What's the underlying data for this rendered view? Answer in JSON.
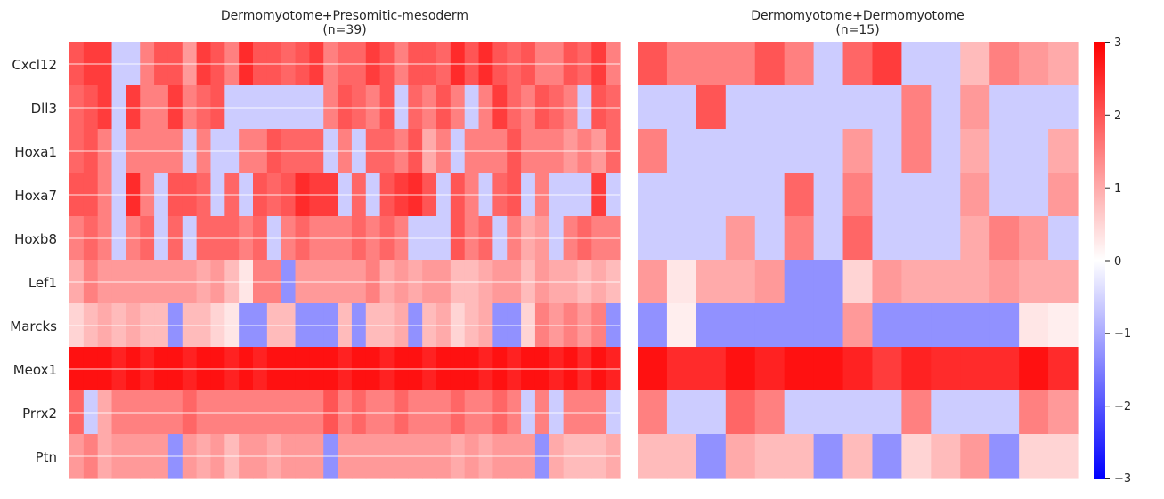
{
  "chart_data": {
    "type": "heatmap",
    "rows": [
      "Cxcl12",
      "Dll3",
      "Hoxa1",
      "Hoxa7",
      "Hoxb8",
      "Lef1",
      "Marcks",
      "Meox1",
      "Prrx2",
      "Ptn"
    ],
    "panels": [
      {
        "title": "Dermomyotome+Presomitic-mesoderm",
        "subtitle": "(n=39)",
        "n_cols": 39,
        "values": [
          [
            2.0,
            2.3,
            2.3,
            -0.6,
            -0.6,
            1.5,
            2.0,
            2.0,
            1.2,
            2.3,
            2.0,
            1.5,
            2.5,
            2.0,
            2.0,
            1.8,
            2.0,
            2.3,
            1.5,
            1.8,
            1.8,
            2.3,
            2.0,
            1.5,
            2.0,
            2.0,
            1.8,
            2.5,
            2.0,
            2.5,
            2.0,
            1.8,
            2.0,
            1.5,
            1.5,
            2.0,
            1.8,
            2.3,
            1.5
          ],
          [
            1.8,
            2.0,
            2.3,
            -0.6,
            2.3,
            1.5,
            1.5,
            2.3,
            1.5,
            1.8,
            2.0,
            -0.6,
            -0.6,
            -0.6,
            -0.6,
            -0.6,
            -0.6,
            -0.6,
            1.5,
            2.0,
            1.8,
            1.5,
            2.0,
            -0.6,
            1.8,
            1.5,
            2.0,
            1.5,
            -0.6,
            1.5,
            2.3,
            1.8,
            1.5,
            2.0,
            1.8,
            1.5,
            -0.6,
            2.0,
            1.8
          ],
          [
            1.8,
            2.0,
            1.5,
            -0.6,
            1.5,
            1.5,
            1.5,
            1.5,
            -0.6,
            1.5,
            -0.6,
            -0.6,
            1.5,
            1.5,
            2.0,
            1.8,
            1.8,
            1.8,
            -0.6,
            1.5,
            -0.6,
            1.8,
            1.8,
            1.5,
            2.0,
            1.0,
            1.5,
            -0.6,
            1.5,
            1.5,
            1.5,
            2.0,
            1.5,
            1.5,
            1.5,
            1.2,
            1.5,
            1.2,
            1.8
          ],
          [
            2.0,
            2.0,
            1.5,
            -0.6,
            2.5,
            1.5,
            -0.6,
            2.0,
            2.0,
            1.8,
            -0.6,
            1.8,
            -0.6,
            2.0,
            1.8,
            2.0,
            2.5,
            2.3,
            2.3,
            -0.6,
            1.8,
            -0.6,
            2.0,
            2.3,
            2.5,
            2.0,
            -0.6,
            2.0,
            1.5,
            -0.6,
            1.8,
            2.0,
            -0.6,
            1.5,
            -0.6,
            -0.6,
            -0.6,
            2.3,
            -0.6
          ],
          [
            1.5,
            1.8,
            1.5,
            -0.6,
            1.5,
            1.8,
            -0.6,
            1.8,
            -0.6,
            1.8,
            1.8,
            1.8,
            1.5,
            1.8,
            -0.6,
            1.5,
            1.8,
            1.5,
            1.5,
            1.5,
            1.8,
            1.5,
            1.8,
            1.5,
            -0.6,
            -0.6,
            -0.6,
            2.0,
            1.5,
            1.8,
            -0.6,
            1.5,
            1.0,
            1.2,
            -0.6,
            1.5,
            1.8,
            1.5,
            1.5
          ],
          [
            1.0,
            1.5,
            1.2,
            1.2,
            1.2,
            1.2,
            1.2,
            1.2,
            1.2,
            1.0,
            1.2,
            0.8,
            0.3,
            1.5,
            1.5,
            -1.3,
            1.2,
            1.2,
            1.2,
            1.2,
            1.2,
            1.5,
            1.0,
            1.2,
            1.0,
            1.2,
            1.2,
            0.8,
            0.8,
            1.0,
            1.2,
            1.2,
            0.8,
            1.2,
            1.0,
            1.0,
            0.8,
            1.0,
            0.8
          ],
          [
            0.5,
            0.8,
            1.0,
            0.8,
            1.0,
            0.8,
            0.8,
            -1.3,
            0.8,
            0.8,
            0.5,
            0.3,
            -1.3,
            -1.3,
            0.8,
            0.8,
            -1.3,
            -1.3,
            -1.3,
            0.8,
            -1.3,
            0.8,
            0.8,
            1.0,
            -1.3,
            0.8,
            1.0,
            0.5,
            0.8,
            1.0,
            -1.3,
            -1.3,
            0.5,
            1.5,
            1.2,
            1.5,
            1.2,
            1.5,
            -1.3
          ],
          [
            2.8,
            2.8,
            2.8,
            2.6,
            2.8,
            2.6,
            2.8,
            2.8,
            2.6,
            2.8,
            2.8,
            2.6,
            2.8,
            2.6,
            2.8,
            2.8,
            2.8,
            2.8,
            2.8,
            2.6,
            2.8,
            2.8,
            2.6,
            2.8,
            2.8,
            2.6,
            2.8,
            2.8,
            2.8,
            2.6,
            2.8,
            2.6,
            2.8,
            2.8,
            2.6,
            2.8,
            2.5,
            2.8,
            2.6
          ],
          [
            1.8,
            -0.6,
            1.0,
            1.5,
            1.5,
            1.5,
            1.5,
            1.5,
            1.8,
            1.5,
            1.5,
            1.5,
            1.5,
            1.5,
            1.5,
            1.5,
            1.5,
            1.5,
            2.0,
            1.5,
            1.8,
            1.5,
            1.5,
            1.8,
            1.5,
            1.5,
            1.5,
            1.8,
            1.5,
            1.5,
            1.8,
            1.5,
            -0.6,
            1.5,
            -0.6,
            1.5,
            1.5,
            1.5,
            -0.6
          ],
          [
            1.2,
            1.5,
            1.0,
            1.2,
            1.2,
            1.2,
            1.2,
            -1.3,
            1.2,
            1.0,
            1.2,
            0.8,
            1.2,
            1.2,
            1.0,
            1.2,
            1.2,
            1.2,
            -1.3,
            1.2,
            1.2,
            1.2,
            1.2,
            1.2,
            1.2,
            1.2,
            1.2,
            1.0,
            1.2,
            1.0,
            1.2,
            1.2,
            1.2,
            -1.3,
            1.0,
            0.8,
            0.8,
            0.8,
            1.0
          ]
        ]
      },
      {
        "title": "Dermomyotome+Dermomyotome",
        "subtitle": "(n=15)",
        "n_cols": 15,
        "values": [
          [
            2.0,
            1.5,
            1.5,
            1.5,
            2.0,
            1.5,
            -0.6,
            1.8,
            2.3,
            -0.6,
            -0.6,
            0.8,
            1.5,
            1.2,
            1.0
          ],
          [
            -0.6,
            -0.6,
            2.0,
            -0.6,
            -0.6,
            -0.6,
            -0.6,
            -0.6,
            -0.6,
            1.5,
            -0.6,
            1.2,
            -0.6,
            -0.6,
            -0.6
          ],
          [
            1.5,
            -0.6,
            -0.6,
            -0.6,
            -0.6,
            -0.6,
            -0.6,
            1.2,
            -0.6,
            1.5,
            -0.6,
            1.0,
            -0.6,
            -0.6,
            1.0
          ],
          [
            -0.6,
            -0.6,
            -0.6,
            -0.6,
            -0.6,
            1.8,
            -0.6,
            1.5,
            -0.6,
            -0.6,
            -0.6,
            1.2,
            -0.6,
            -0.6,
            1.2
          ],
          [
            -0.6,
            -0.6,
            -0.6,
            1.2,
            -0.6,
            1.5,
            -0.6,
            1.8,
            -0.6,
            -0.6,
            -0.6,
            1.0,
            1.5,
            1.2,
            -0.6
          ],
          [
            1.2,
            0.3,
            1.0,
            1.0,
            1.2,
            -1.3,
            -1.3,
            0.5,
            1.2,
            1.0,
            1.0,
            1.0,
            1.2,
            1.0,
            1.0
          ],
          [
            -1.3,
            0.2,
            -1.3,
            -1.3,
            -1.3,
            -1.3,
            -1.3,
            1.2,
            -1.3,
            -1.3,
            -1.3,
            -1.3,
            -1.3,
            0.3,
            0.2
          ],
          [
            2.8,
            2.5,
            2.5,
            2.8,
            2.6,
            2.8,
            2.8,
            2.6,
            2.3,
            2.6,
            2.5,
            2.5,
            2.5,
            2.8,
            2.5
          ],
          [
            1.5,
            -0.6,
            -0.6,
            1.8,
            1.5,
            -0.6,
            -0.6,
            -0.6,
            -0.6,
            1.5,
            -0.6,
            -0.6,
            -0.6,
            1.5,
            1.2
          ],
          [
            0.8,
            0.8,
            -1.3,
            1.0,
            0.8,
            0.8,
            -1.3,
            0.8,
            -1.3,
            0.5,
            0.8,
            1.2,
            -1.3,
            0.5,
            0.5
          ]
        ]
      }
    ],
    "colorbar": {
      "vmin": -3,
      "vmax": 3,
      "colormap": "bwr",
      "ticks": [
        "3",
        "2",
        "1",
        "0",
        "−1",
        "−2",
        "−3"
      ]
    },
    "colors": {
      "low": "#0000ff",
      "mid": "#ffffff",
      "high": "#ff0000",
      "text": "#262626"
    }
  }
}
